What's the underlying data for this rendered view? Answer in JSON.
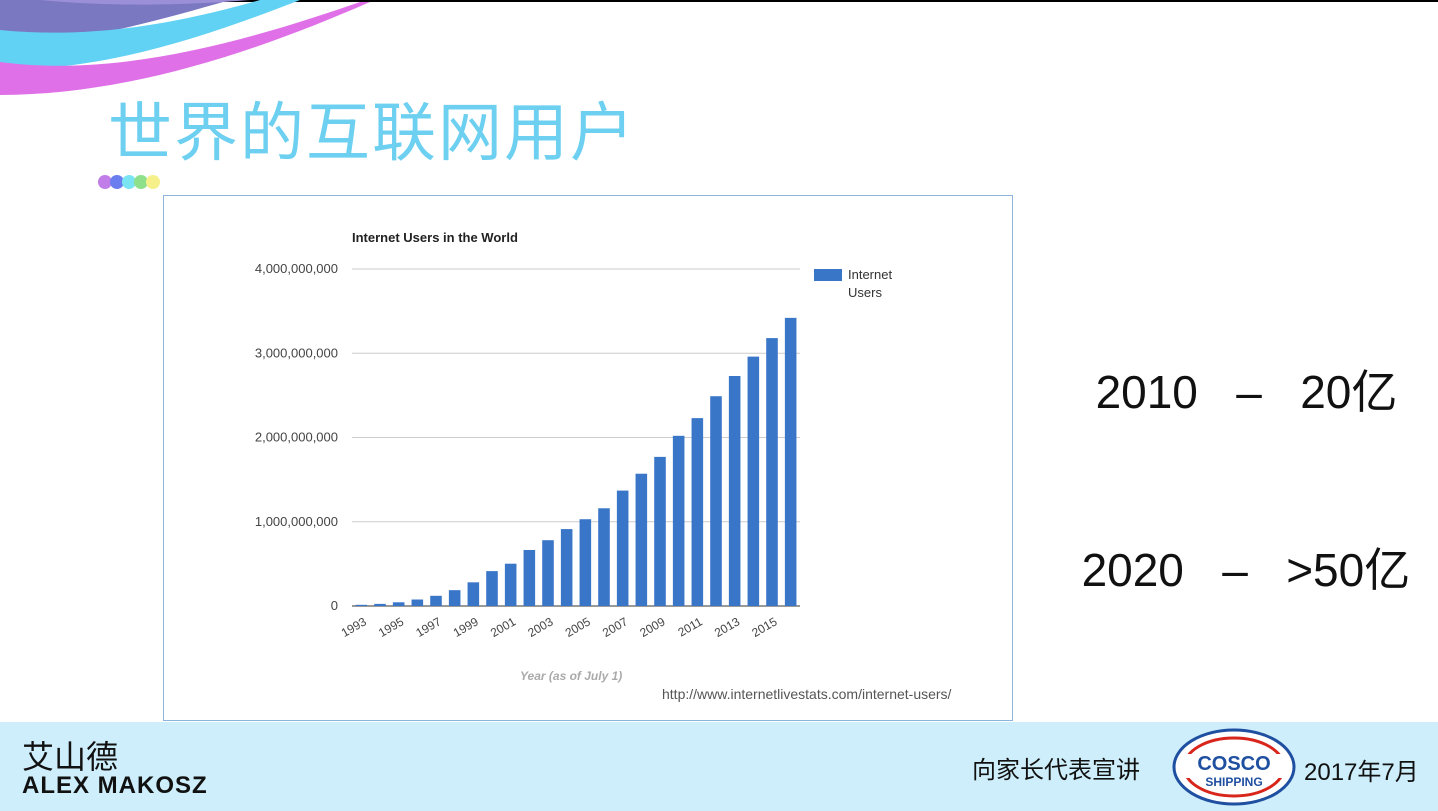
{
  "slide": {
    "title": "世界的互联网用户",
    "accent_dots": [
      "#c27ee8",
      "#6a7ef0",
      "#7be4f2",
      "#8ee08a",
      "#f6f08a"
    ]
  },
  "chart_data": {
    "type": "bar",
    "title": "Internet Users in the World",
    "xlabel": "Year (as of July 1)",
    "ylabel": "",
    "ylim": [
      0,
      4000000000
    ],
    "yticks": [
      "4,000,000,000",
      "3,000,000,000",
      "2,000,000,000",
      "1,000,000,000",
      "0"
    ],
    "x_tick_labels": [
      "1993",
      "1995",
      "1997",
      "1999",
      "2001",
      "2003",
      "2005",
      "2007",
      "2009",
      "2011",
      "2013",
      "2015"
    ],
    "categories": [
      "1993",
      "1994",
      "1995",
      "1996",
      "1997",
      "1998",
      "1999",
      "2000",
      "2001",
      "2002",
      "2003",
      "2004",
      "2005",
      "2006",
      "2007",
      "2008",
      "2009",
      "2010",
      "2011",
      "2012",
      "2013",
      "2014",
      "2015",
      "2016"
    ],
    "series": [
      {
        "name": "Internet Users",
        "color": "#3a76c8",
        "values": [
          14000000,
          25000000,
          44000000,
          77000000,
          121000000,
          188000000,
          281000000,
          414000000,
          502000000,
          665000000,
          781000000,
          913000000,
          1030000000,
          1160000000,
          1370000000,
          1570000000,
          1770000000,
          2020000000,
          2230000000,
          2490000000,
          2730000000,
          2960000000,
          3180000000,
          3420000000
        ]
      }
    ],
    "grid": true,
    "legend_position": "top-right",
    "source": "http://www.internetlivestats.com/internet-users/"
  },
  "stats": [
    {
      "year": "2010",
      "dash": "–",
      "value": "20亿"
    },
    {
      "year": "2020",
      "dash": "–",
      "value": ">50亿"
    }
  ],
  "footer": {
    "speaker_cn": "艾山德",
    "speaker_en": "ALEX MAKOSZ",
    "event": "向家长代表宣讲",
    "logo_text_top": "COSCO",
    "logo_text_bottom": "SHIPPING",
    "date": "2017年7月"
  }
}
